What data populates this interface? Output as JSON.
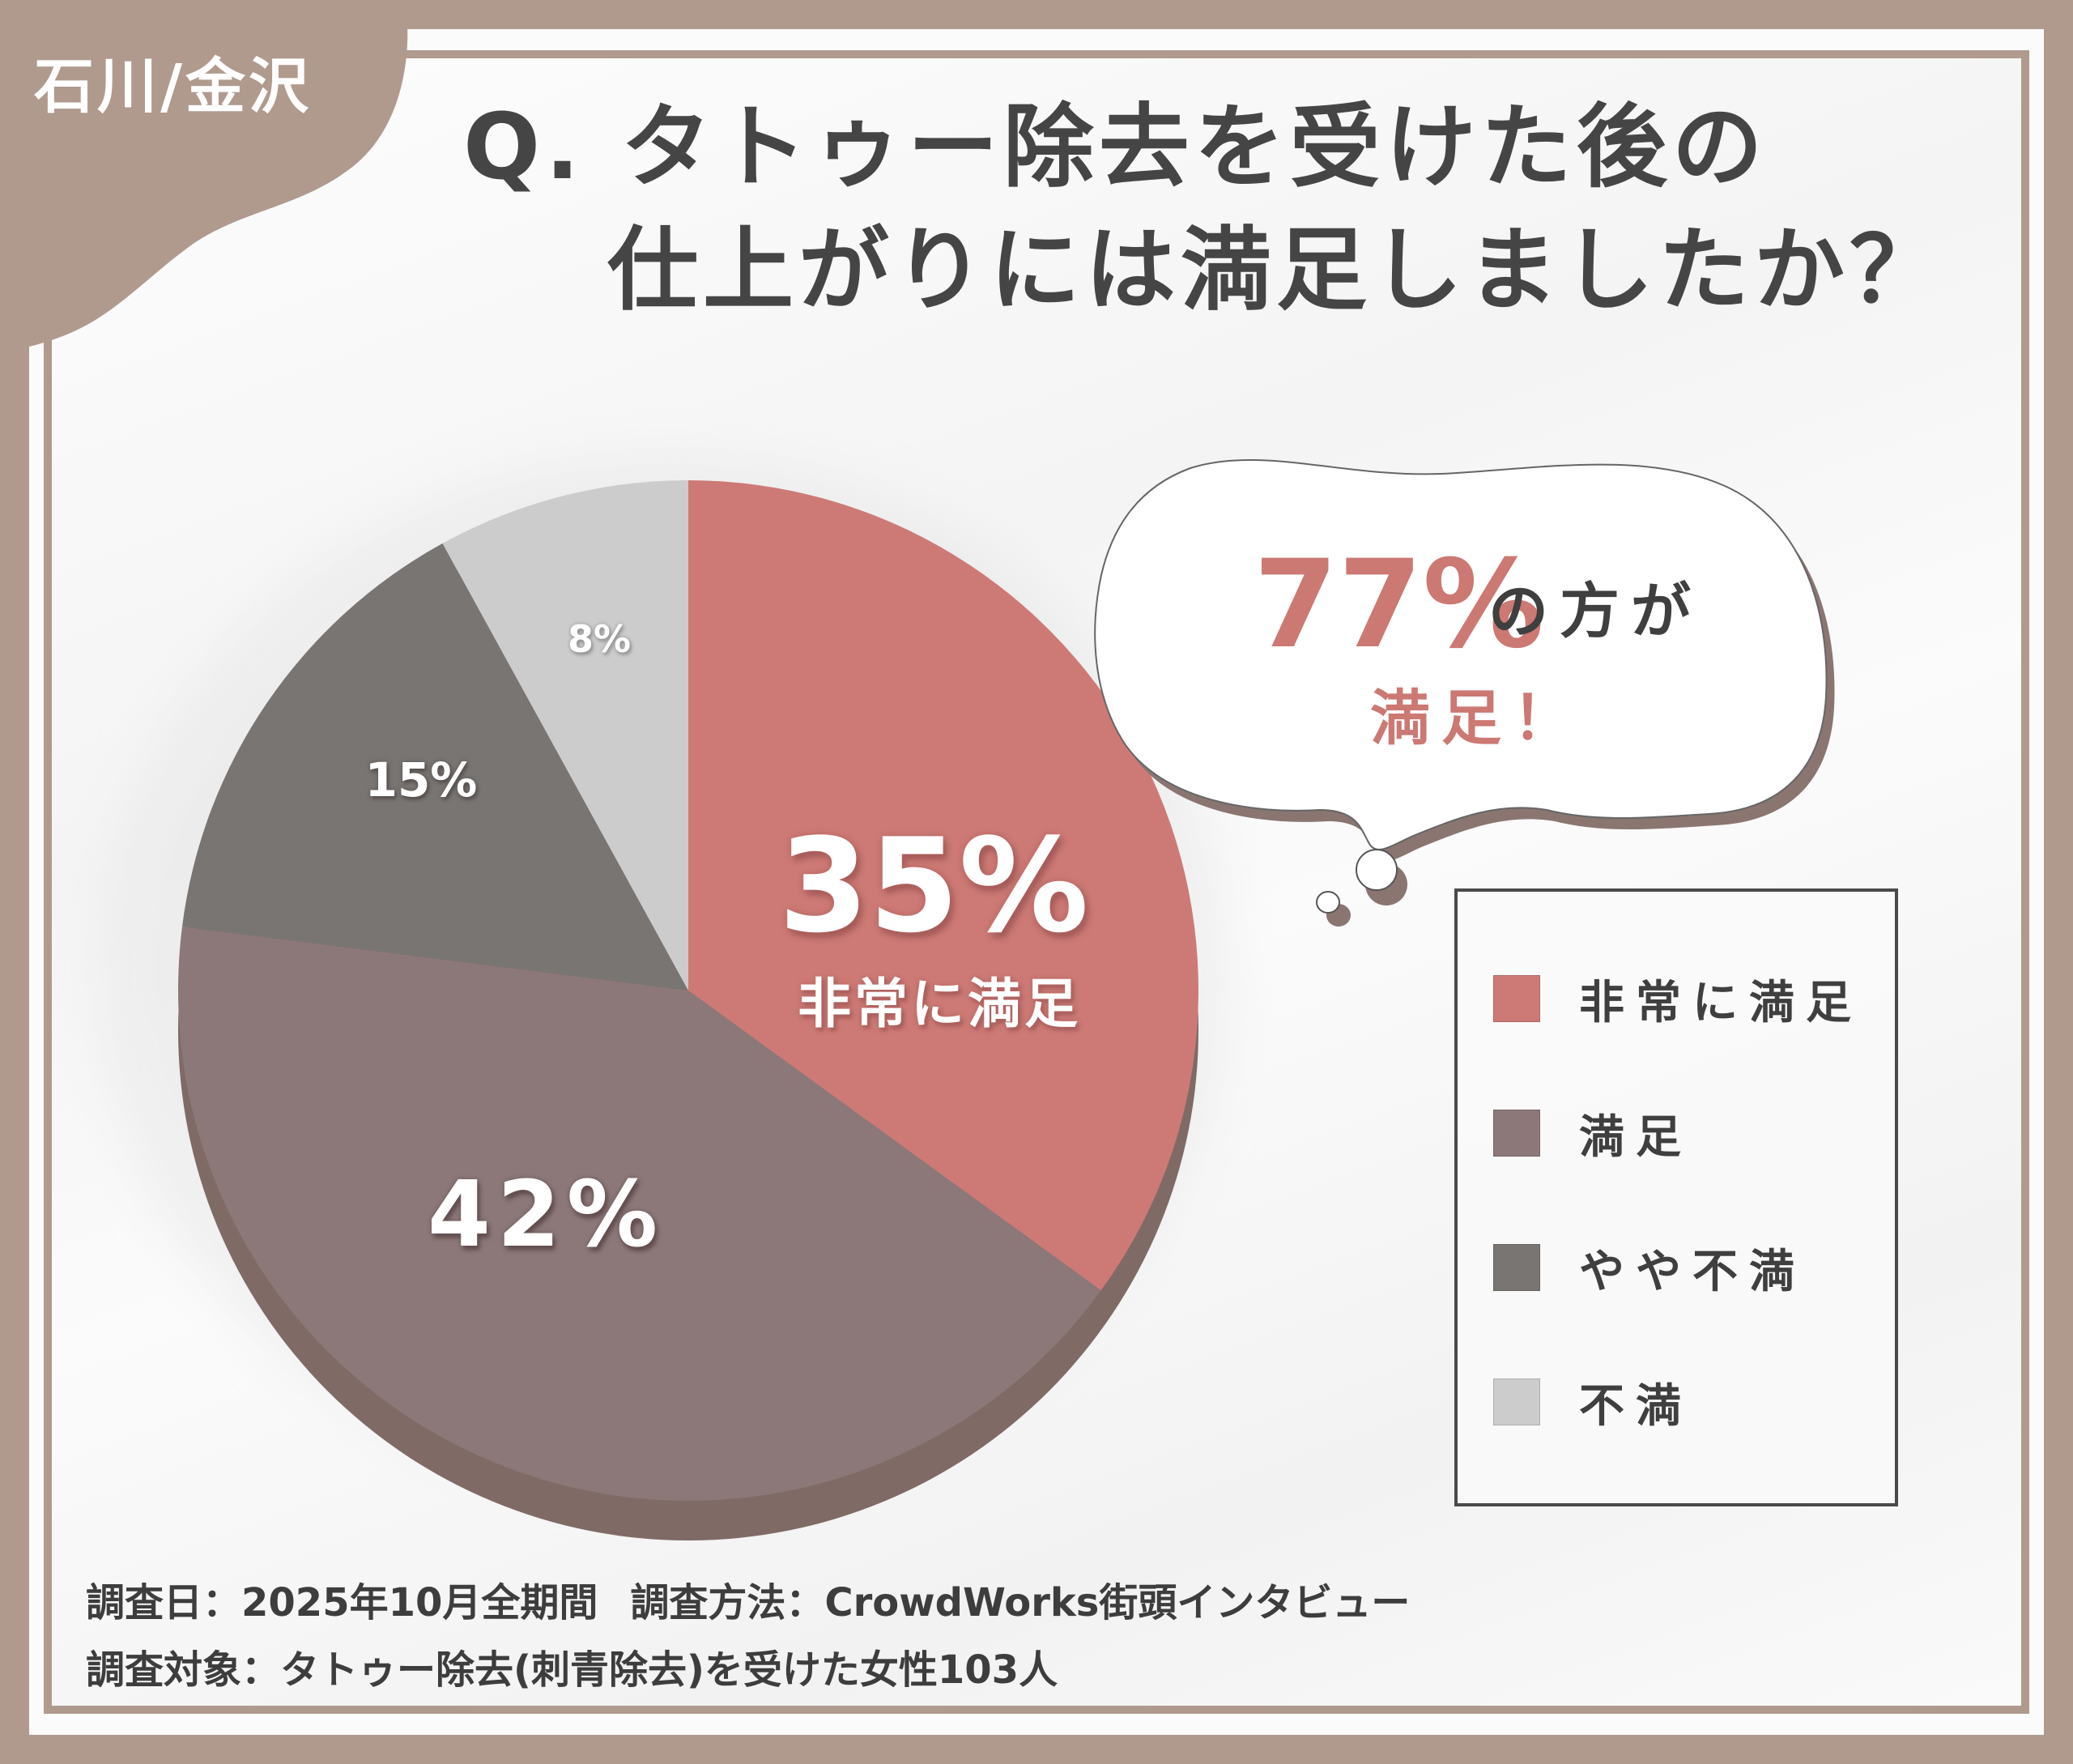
{
  "badge": {
    "label": "石川/金沢",
    "color": "#b09a8e"
  },
  "title": {
    "line1": "Q. タトゥー除去を受けた後の",
    "line2": "仕上がりには満足しましたか？"
  },
  "callout": {
    "percent": "77%",
    "suffix": "の方が",
    "line2": "満足！"
  },
  "legend": {
    "items": [
      {
        "label": "非常に満足",
        "color": "#cd7a76"
      },
      {
        "label": "満足",
        "color": "#8c7878"
      },
      {
        "label": "やや不満",
        "color": "#797572"
      },
      {
        "label": "不満",
        "color": "#cccccc"
      }
    ]
  },
  "slice_labels": {
    "very_satisfied_percent": "35%",
    "very_satisfied_name": "非常に満足",
    "satisfied_percent": "42%",
    "somewhat_dissatisfied_percent": "15%",
    "dissatisfied_percent": "8%"
  },
  "footer": {
    "date_label": "調査日：2025年10月全期間",
    "method_label": "調査方法：CrowdWorks街頭インタビュー",
    "target_label": "調査対象：タトゥー除去(刺青除去)を受けた女性103人"
  },
  "colors": {
    "frame": "#b09a8e",
    "accent": "#cc7873",
    "text": "#454545",
    "pie_rim": "#7f6a65"
  },
  "chart_data": {
    "type": "pie",
    "title": "Q. タトゥー除去を受けた後の仕上がりには満足しましたか？",
    "categories": [
      "非常に満足",
      "満足",
      "やや不満",
      "不満"
    ],
    "values": [
      35,
      42,
      15,
      8
    ],
    "unit": "%",
    "colors": [
      "#cd7a76",
      "#8c7878",
      "#797572",
      "#cccccc"
    ],
    "start_angle": "12 o'clock, clockwise",
    "legend_position": "right",
    "annotation": "77%の方が満足！",
    "subtitle": "石川/金沢",
    "notes": [
      "調査日：2025年10月全期間",
      "調査方法：CrowdWorks街頭インタビュー",
      "調査対象：タトゥー除去(刺青除去)を受けた女性103人"
    ]
  }
}
